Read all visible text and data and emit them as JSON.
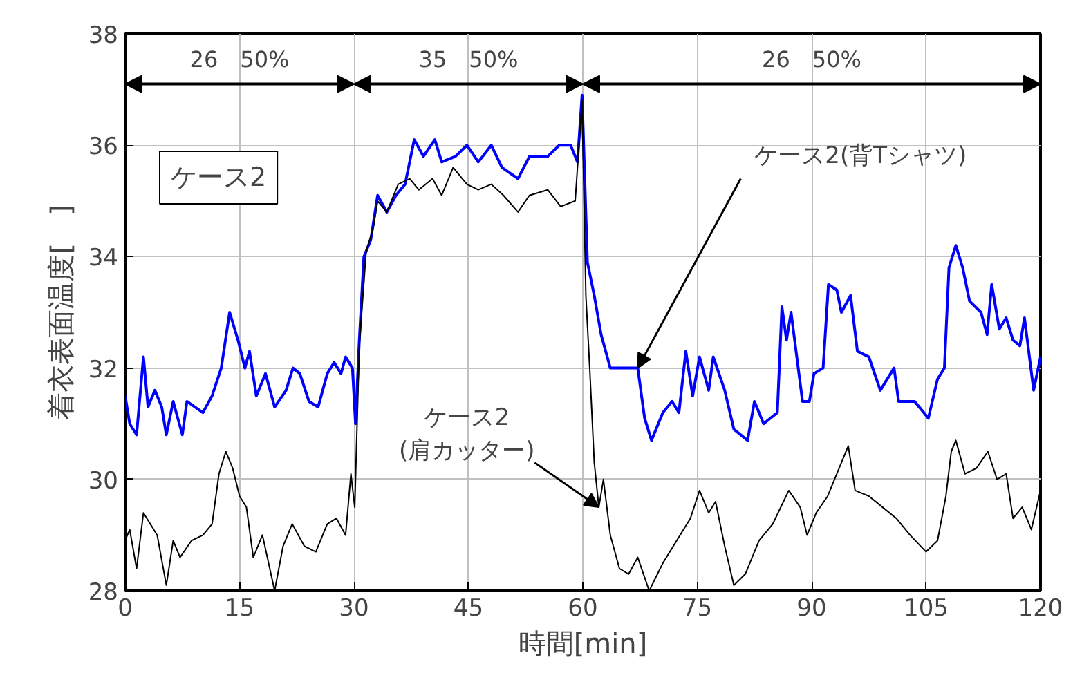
{
  "chart_data": {
    "type": "line",
    "xlabel": "時間[min]",
    "ylabel": "着衣表面温度[　]",
    "xlim": [
      0,
      120
    ],
    "xticks": [
      0,
      15,
      30,
      45,
      60,
      75,
      90,
      105,
      120
    ],
    "ylim": [
      28,
      38
    ],
    "yticks": [
      28,
      30,
      32,
      34,
      36,
      38
    ],
    "grid": true,
    "series": [
      {
        "color": "#0000ff",
        "x": [
          0,
          0.6,
          1.5,
          2.4,
          3.0,
          3.9,
          4.8,
          5.4,
          6.3,
          7.5,
          8.1,
          10.2,
          11.4,
          12.6,
          13.7,
          14.8,
          15.7,
          16.3,
          17.2,
          18.4,
          19.6,
          21.1,
          22.0,
          22.9,
          24.1,
          25.3,
          26.5,
          27.4,
          28.3,
          28.9,
          29.8,
          30.2,
          30.7,
          31.3,
          32.2,
          33.1,
          34.3,
          35.5,
          36.7,
          37.9,
          39.1,
          40.6,
          41.5,
          43.3,
          44.8,
          46.3,
          48.0,
          49.4,
          51.5,
          53.0,
          55.4,
          56.9,
          58.4,
          59.3,
          59.9,
          60.6,
          61.5,
          62.4,
          63.6,
          65.1,
          67.2,
          68.1,
          69.0,
          70.5,
          71.7,
          72.6,
          73.5,
          74.4,
          75.3,
          76.5,
          77.1,
          78.6,
          79.8,
          81.6,
          82.5,
          83.7,
          85.5,
          86.1,
          86.7,
          87.3,
          88.8,
          89.7,
          90.3,
          91.5,
          92.2,
          93.3,
          93.9,
          95.1,
          96.0,
          97.5,
          99.0,
          100.8,
          101.4,
          103.5,
          105.3,
          106.5,
          107.4,
          108.0,
          108.9,
          109.8,
          110.7,
          112.2,
          113.0,
          113.6,
          114.6,
          115.5,
          116.4,
          117.3,
          117.9,
          119.1,
          120
        ],
        "values": [
          31.5,
          31.0,
          30.8,
          32.2,
          31.3,
          31.6,
          31.3,
          30.8,
          31.4,
          30.8,
          31.4,
          31.2,
          31.5,
          32.0,
          33.0,
          32.5,
          32.0,
          32.3,
          31.5,
          31.9,
          31.3,
          31.6,
          32.0,
          31.9,
          31.4,
          31.3,
          31.9,
          32.1,
          31.9,
          32.2,
          32.0,
          31.0,
          32.5,
          34.0,
          34.3,
          35.1,
          34.8,
          35.1,
          35.3,
          36.1,
          35.8,
          36.1,
          35.7,
          35.8,
          36.0,
          35.7,
          36.0,
          35.6,
          35.4,
          35.8,
          35.8,
          36.0,
          36.0,
          35.7,
          36.9,
          33.9,
          33.3,
          32.6,
          32.0,
          32.0,
          32.0,
          31.1,
          30.7,
          31.2,
          31.4,
          31.2,
          32.3,
          31.5,
          32.2,
          31.6,
          32.2,
          31.6,
          30.9,
          30.7,
          31.4,
          31.0,
          31.2,
          33.1,
          32.5,
          33.0,
          31.4,
          31.4,
          31.9,
          32.0,
          33.5,
          33.4,
          33.0,
          33.3,
          32.3,
          32.2,
          31.6,
          32.0,
          31.4,
          31.4,
          31.1,
          31.8,
          32.0,
          33.8,
          34.2,
          33.8,
          33.2,
          33.0,
          32.6,
          33.5,
          32.7,
          32.9,
          32.5,
          32.4,
          32.9,
          31.6,
          32.2
        ]
      },
      {
        "color": "#000000",
        "x": [
          0,
          0.6,
          1.5,
          2.4,
          3.3,
          4.2,
          5.4,
          6.3,
          7.2,
          8.7,
          10.2,
          11.4,
          12.3,
          13.2,
          14.1,
          15.0,
          15.9,
          16.8,
          18.0,
          19.6,
          20.7,
          21.9,
          23.5,
          25.0,
          26.5,
          27.7,
          28.9,
          29.6,
          30.1,
          30.7,
          31.6,
          32.5,
          33.1,
          34.3,
          35.8,
          37.3,
          38.5,
          40.3,
          41.5,
          43.0,
          44.8,
          46.3,
          48.0,
          49.6,
          51.5,
          53.0,
          55.4,
          57.1,
          59.0,
          59.9,
          60.4,
          60.9,
          61.5,
          62.1,
          62.7,
          63.6,
          64.8,
          66.0,
          67.2,
          68.7,
          70.5,
          72.3,
          74.1,
          75.3,
          76.5,
          77.4,
          78.6,
          79.8,
          81.3,
          83.1,
          84.9,
          87.0,
          88.5,
          89.4,
          90.6,
          92.1,
          93.3,
          94.8,
          95.7,
          97.5,
          99.3,
          101.1,
          102.9,
          105.0,
          106.5,
          107.6,
          108.3,
          108.9,
          110.1,
          111.6,
          113.1,
          114.3,
          115.5,
          116.4,
          117.6,
          118.8,
          120
        ],
        "values": [
          28.9,
          29.1,
          28.4,
          29.4,
          29.2,
          29.0,
          28.1,
          28.9,
          28.6,
          28.9,
          29.0,
          29.2,
          30.1,
          30.5,
          30.2,
          29.7,
          29.5,
          28.6,
          29.0,
          28.0,
          28.8,
          29.2,
          28.8,
          28.7,
          29.2,
          29.3,
          29.0,
          30.1,
          29.5,
          32.4,
          34.1,
          34.5,
          35.0,
          34.8,
          35.3,
          35.4,
          35.2,
          35.4,
          35.1,
          35.6,
          35.3,
          35.2,
          35.3,
          35.1,
          34.8,
          35.1,
          35.2,
          34.9,
          35.0,
          36.8,
          33.3,
          32.0,
          30.3,
          29.5,
          30.0,
          29.0,
          28.4,
          28.3,
          28.6,
          28.0,
          28.5,
          28.9,
          29.3,
          29.8,
          29.4,
          29.6,
          28.8,
          28.1,
          28.3,
          28.9,
          29.2,
          29.8,
          29.5,
          29.0,
          29.4,
          29.7,
          30.1,
          30.6,
          29.8,
          29.7,
          29.5,
          29.3,
          29.0,
          28.7,
          28.9,
          29.7,
          30.5,
          30.7,
          30.1,
          30.2,
          30.5,
          30.0,
          30.1,
          29.3,
          29.5,
          29.1,
          29.8
        ]
      }
    ],
    "annotations": [
      "26　50%",
      "35　50%",
      "26　50%",
      "ケース2",
      {
        "text": "ケース2(背Tシャツ)",
        "x": 67.2,
        "y": 32.0
      },
      {
        "text": "ケース2\n(肩カッター)",
        "x": 62.1,
        "y": 29.5
      }
    ]
  }
}
